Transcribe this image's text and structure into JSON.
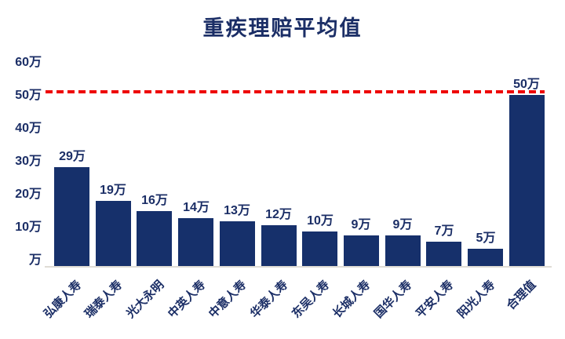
{
  "colors": {
    "bar": "#16306B",
    "text": "#1B2E66",
    "reference_line": "#EE0000",
    "axis_line": "#DFDCD5",
    "background": "#FFFFFF"
  },
  "chart_data": {
    "type": "bar",
    "title": "重疾理赔平均值",
    "categories": [
      "弘康人寿",
      "瑞泰人寿",
      "光大永明",
      "中英人寿",
      "中意人寿",
      "华泰人寿",
      "东吴人寿",
      "长城人寿",
      "国华人寿",
      "平安人寿",
      "阳光人寿",
      "合理值"
    ],
    "values": [
      29,
      19,
      16,
      14,
      13,
      12,
      10,
      9,
      9,
      7,
      5,
      50
    ],
    "data_labels": [
      "29万",
      "19万",
      "16万",
      "14万",
      "13万",
      "12万",
      "10万",
      "9万",
      "9万",
      "7万",
      "5万",
      "50万"
    ],
    "unit": "万",
    "xlabel": "",
    "ylabel": "",
    "ylim": [
      0,
      60
    ],
    "y_ticks": [
      {
        "label": "60万",
        "value": 60
      },
      {
        "label": "50万",
        "value": 50
      },
      {
        "label": "40万",
        "value": 40
      },
      {
        "label": "30万",
        "value": 30
      },
      {
        "label": "20万",
        "value": 20
      },
      {
        "label": "10万",
        "value": 10
      },
      {
        "label": "万",
        "value": 0
      }
    ],
    "grid": false,
    "legend": false,
    "reference_line": {
      "value": 50,
      "style": "dashed",
      "color": "#EE0000"
    }
  }
}
